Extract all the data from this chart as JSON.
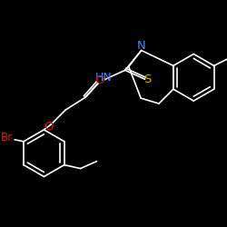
{
  "background_color": "#000000",
  "atom_N_color": "#4488ff",
  "atom_S_color": "#ccaa00",
  "atom_O_color": "#dd1100",
  "atom_Br_color": "#cc2200",
  "atom_HN_color": "#4488ff",
  "bond_color": "#ffffff",
  "figsize": [
    2.5,
    2.5
  ],
  "dpi": 100,
  "xlim": [
    0,
    250
  ],
  "ylim": [
    0,
    250
  ]
}
